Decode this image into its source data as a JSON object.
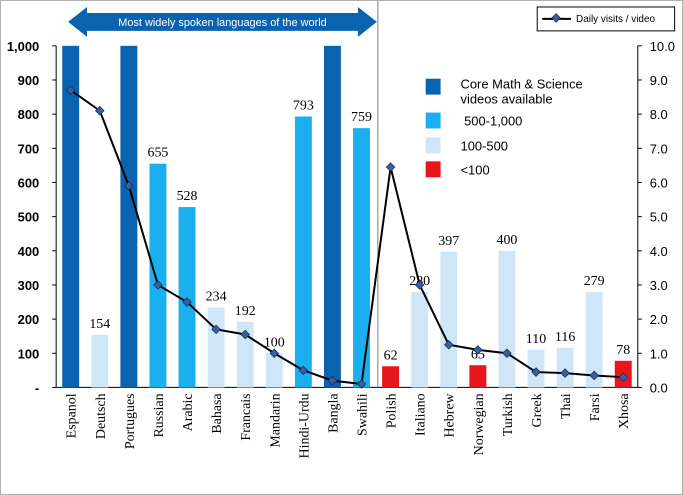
{
  "chart_data": {
    "type": "bar",
    "title": "",
    "banner": "Most widely spoken languages of the world",
    "categories": [
      "Espanol",
      "Deutsch",
      "Portugues",
      "Russian",
      "Arabic",
      "Bahasa",
      "Francais",
      "Mandarin",
      "Hindi-Urdu",
      "Bangla",
      "Swahili",
      "Polish",
      "Italiano",
      "Hebrew",
      "Norwegian",
      "Turkish",
      "Greek",
      "Thai",
      "Farsi",
      "Xhosa"
    ],
    "values": [
      1000,
      154,
      1000,
      655,
      528,
      234,
      192,
      100,
      793,
      1000,
      759,
      62,
      280,
      397,
      65,
      400,
      110,
      116,
      279,
      78
    ],
    "value_labels": [
      "",
      "154",
      "",
      "655",
      "528",
      "234",
      "192",
      "100",
      "793",
      "",
      "759",
      "62",
      "280",
      "397",
      "65",
      "400",
      "110",
      "116",
      "279",
      "78"
    ],
    "bar_tiers": [
      "core",
      "100-500",
      "core",
      "500-1000",
      "500-1000",
      "100-500",
      "100-500",
      "100-500",
      "500-1000",
      "core",
      "500-1000",
      "lt100",
      "100-500",
      "100-500",
      "lt100",
      "100-500",
      "100-500",
      "100-500",
      "100-500",
      "lt100"
    ],
    "ylim": [
      0,
      1000
    ],
    "y_ticks": [
      "-",
      "100",
      "200",
      "300",
      "400",
      "500",
      "600",
      "700",
      "800",
      "900",
      "1,000"
    ],
    "y2lim": [
      0,
      10
    ],
    "y2_ticks": [
      "0.0",
      "1.0",
      "2.0",
      "3.0",
      "4.0",
      "5.0",
      "6.0",
      "7.0",
      "8.0",
      "9.0",
      "10.0"
    ],
    "line_series": {
      "name": "Daily visits / video",
      "values": [
        8.7,
        8.1,
        5.9,
        3.0,
        2.5,
        1.7,
        1.55,
        1.0,
        0.5,
        0.2,
        0.1,
        6.45,
        3.0,
        1.25,
        1.1,
        1.0,
        0.45,
        0.42,
        0.35,
        0.3
      ]
    },
    "legend": [
      {
        "tier": "core",
        "label": "Core Math & Science videos available",
        "color": "#0b63b0"
      },
      {
        "tier": "500-1000",
        "label": " 500-1,000",
        "color": "#1ab0ef"
      },
      {
        "tier": "100-500",
        "label": "100-500",
        "color": "#cfe6f8"
      },
      {
        "tier": "lt100",
        "label": "<100",
        "color": "#e8161c"
      }
    ],
    "grid": false,
    "legend_position": "right"
  }
}
